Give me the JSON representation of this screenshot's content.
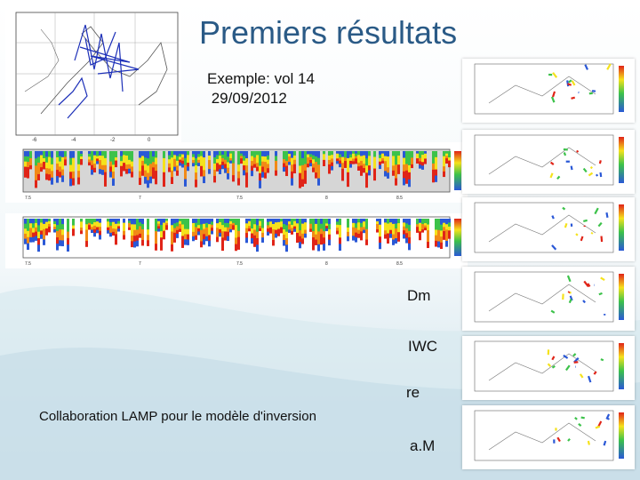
{
  "slide": {
    "title": "Premiers résultats",
    "subtitle_line1": "Exemple: vol 14",
    "subtitle_line2": " 29/09/2012",
    "collaboration": "Collaboration LAMP pour le modèle d'inversion"
  },
  "labels": {
    "dm": "Dm",
    "iwc": "IWC",
    "re": "re",
    "am": "a.M"
  },
  "colors": {
    "title": "#2a5a86",
    "background_wave": "#cfe3ec",
    "radar_red": "#e02418",
    "radar_orange": "#f28a16",
    "radar_yellow": "#f5e21c",
    "radar_green": "#3cc24a",
    "radar_blue": "#2a58d6"
  }
}
